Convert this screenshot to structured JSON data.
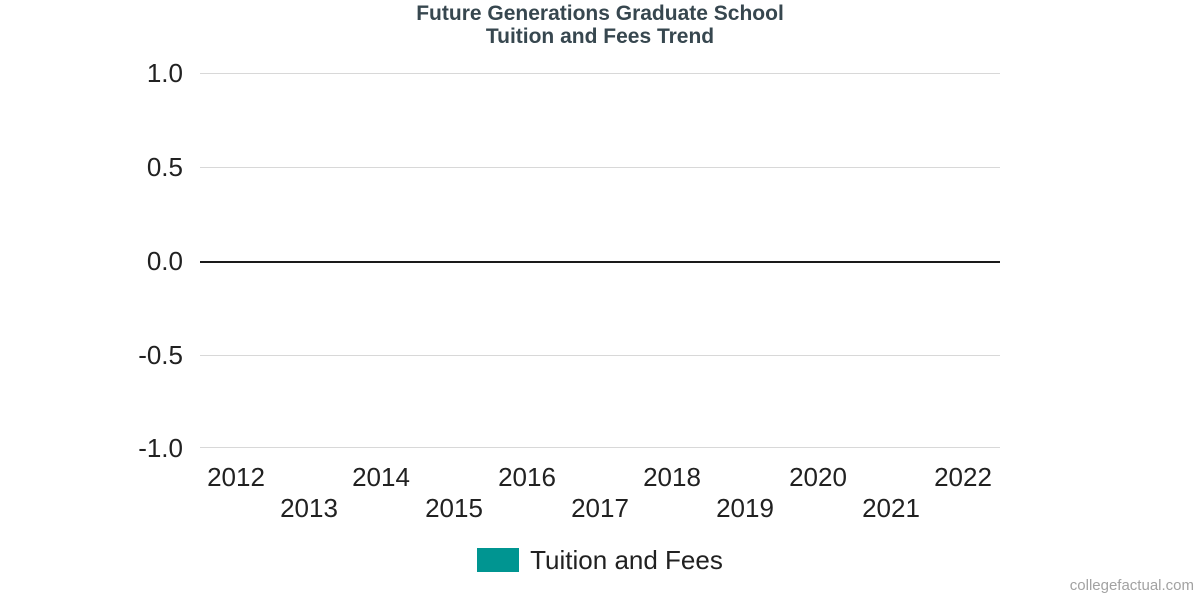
{
  "page": {
    "background": "#ffffff",
    "watermark": "collegefactual.com"
  },
  "chart_data": {
    "type": "line",
    "title": "Future Generations Graduate School",
    "subtitle": "Tuition and Fees Trend",
    "x_categories": [
      "2012",
      "2013",
      "2014",
      "2015",
      "2016",
      "2017",
      "2018",
      "2019",
      "2020",
      "2021",
      "2022"
    ],
    "y_ticks": [
      "1.0",
      "0.5",
      "0.0",
      "-0.5",
      "-1.0"
    ],
    "ylim": [
      -1.0,
      1.0
    ],
    "xlabel": "",
    "ylabel": "",
    "grid": true,
    "legend_position": "bottom",
    "series": [
      {
        "name": "Tuition and Fees",
        "color": "#009591",
        "values": []
      }
    ],
    "colors": {
      "title": "#37474f",
      "tick_label": "#212121",
      "gridline": "#d8d8d8",
      "zero_line": "#1a1a1a",
      "watermark": "#a2a2a2"
    }
  },
  "legend": {
    "label": "Tuition and Fees",
    "swatch_color": "#009591"
  }
}
